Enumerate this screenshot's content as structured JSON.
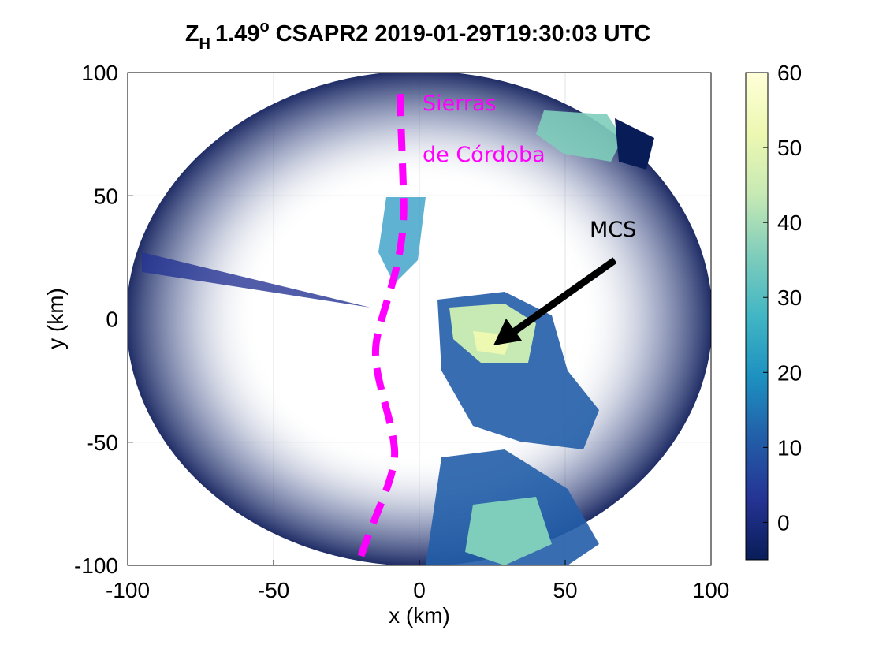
{
  "chart_data": {
    "type": "ppi",
    "title": {
      "symbol": "Z",
      "subscript": "H",
      "angle": "1.49",
      "superscript": "o",
      "text": "CSAPR2 2019-01-29T19:30:03 UTC"
    },
    "xlabel": "x (km)",
    "ylabel": "y (km)",
    "xlim": [
      -100,
      100
    ],
    "ylim": [
      -100,
      100
    ],
    "xticks": [
      -100,
      -50,
      0,
      50,
      100
    ],
    "yticks": [
      -100,
      -50,
      0,
      50,
      100
    ],
    "grid": true,
    "clim": [
      -5,
      60
    ],
    "cticks": [
      0,
      10,
      20,
      30,
      40,
      50,
      60
    ],
    "colormap": [
      "#081d58",
      "#253494",
      "#225ea8",
      "#1d91c0",
      "#41b6c4",
      "#7fcdbb",
      "#c7e9b4",
      "#edf8b1",
      "#ffffd9"
    ],
    "annotations": {
      "region": [
        "Sierras",
        "de Córdoba"
      ],
      "system": "MCS"
    }
  }
}
